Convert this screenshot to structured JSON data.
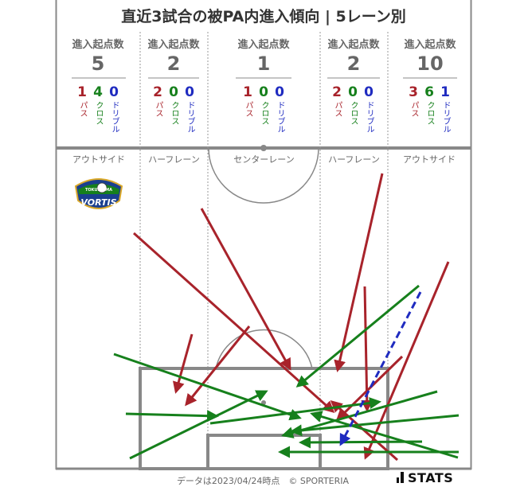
{
  "title": "直近3試合の被PA内進入傾向 | 5レーン別",
  "lanes": [
    {
      "header": "進入起点数",
      "total": "5",
      "pass": "1",
      "cross": "4",
      "dribble": "0",
      "name": "アウトサイド"
    },
    {
      "header": "進入起点数",
      "total": "2",
      "pass": "2",
      "cross": "0",
      "dribble": "0",
      "name": "ハーフレーン"
    },
    {
      "header": "進入起点数",
      "total": "1",
      "pass": "1",
      "cross": "0",
      "dribble": "0",
      "name": "センターレーン"
    },
    {
      "header": "進入起点数",
      "total": "2",
      "pass": "2",
      "cross": "0",
      "dribble": "0",
      "name": "ハーフレーン"
    },
    {
      "header": "進入起点数",
      "total": "10",
      "pass": "3",
      "cross": "6",
      "dribble": "1",
      "name": "アウトサイド"
    }
  ],
  "labels": {
    "pass": "パス",
    "cross": "クロス",
    "dribble": "ドリブル"
  },
  "colors": {
    "pass": "#a8232b",
    "cross": "#16801c",
    "dribble": "#1f2bc0"
  },
  "team_logo": {
    "text": "VORTIS",
    "small": "TOKUSHIMA"
  },
  "footer": "データは2023/04/24時点　© SPORTERIA",
  "brand": "STATS"
}
